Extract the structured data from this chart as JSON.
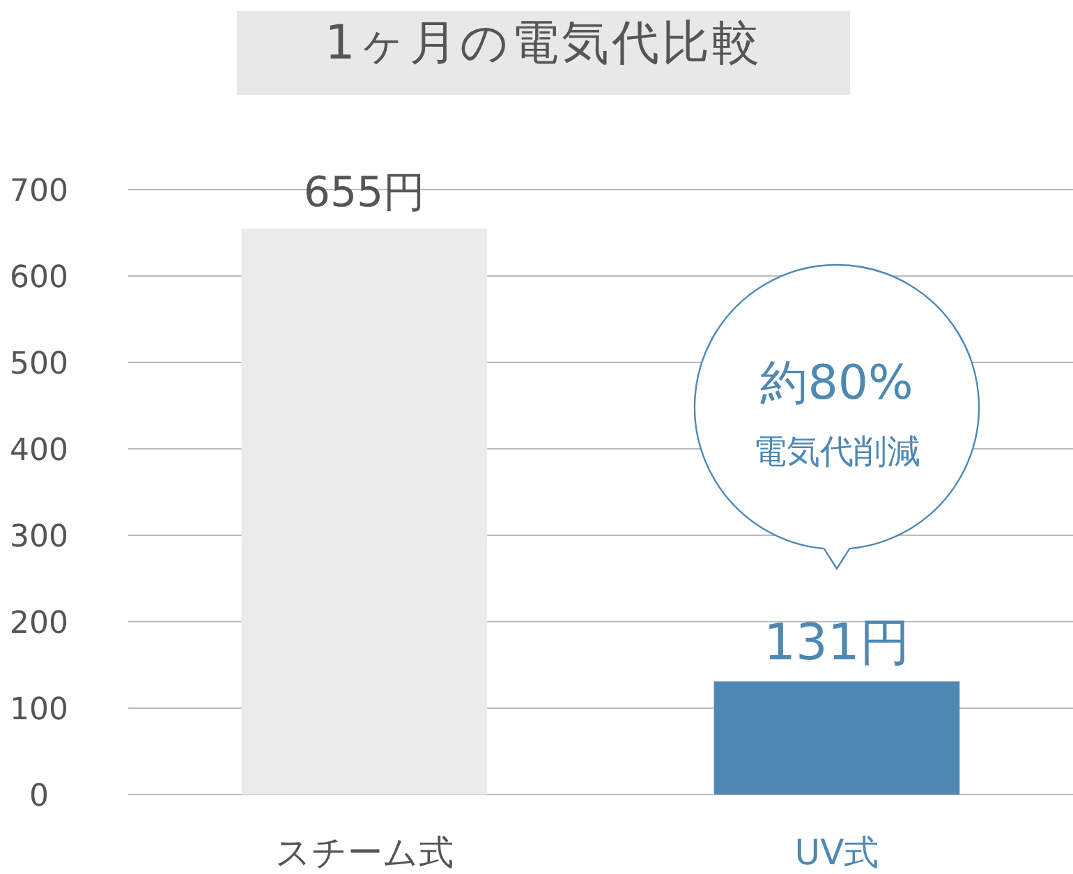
{
  "chart_data": {
    "type": "bar",
    "title": "1ヶ月の電気代比較",
    "categories": [
      "スチーム式",
      "UV式"
    ],
    "values": [
      655,
      131
    ],
    "colors": [
      "#ebebeb",
      "#4f88b3"
    ],
    "value_labels": [
      "655円",
      "131円"
    ],
    "ylim": [
      0,
      700
    ],
    "yticks": [
      0,
      100,
      200,
      300,
      400,
      500,
      600,
      700
    ],
    "grid": "y",
    "annotations": [
      "約80%",
      "電気代削減"
    ]
  }
}
